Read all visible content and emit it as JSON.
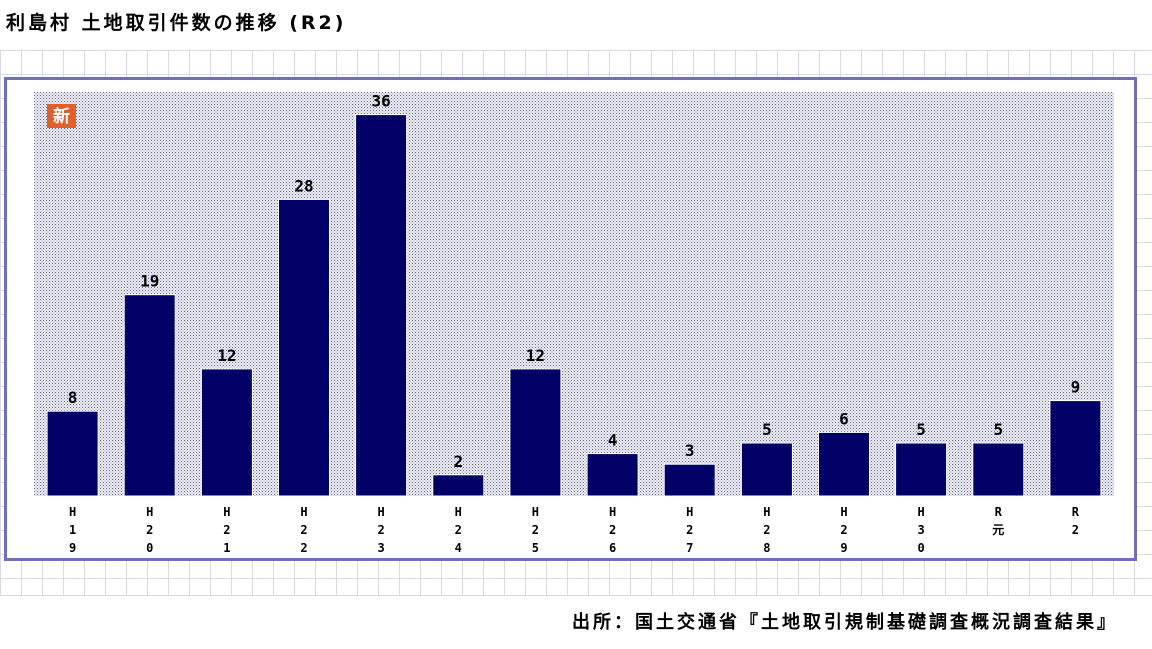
{
  "title": "利島村 土地取引件数の推移 (R2)",
  "source": "出所：国土交通省『土地取引規制基礎調査概況調査結果』",
  "badge": "新",
  "colors": {
    "bar": "#000066",
    "frame": "#7070b8",
    "plot_bg": "#c8c8dc",
    "badge": "#e0602a"
  },
  "chart_data": {
    "type": "bar",
    "categories": [
      "H19",
      "H20",
      "H21",
      "H22",
      "H23",
      "H24",
      "H25",
      "H26",
      "H27",
      "H28",
      "H29",
      "H30",
      "R元",
      "R2"
    ],
    "values": [
      8,
      19,
      12,
      28,
      36,
      2,
      12,
      4,
      3,
      5,
      6,
      5,
      5,
      9
    ],
    "title": "利島村 土地取引件数の推移 (R2)",
    "xlabel": "",
    "ylabel": "",
    "ylim": [
      0,
      37
    ],
    "grid": false,
    "legend": "none",
    "data_labels": true
  }
}
